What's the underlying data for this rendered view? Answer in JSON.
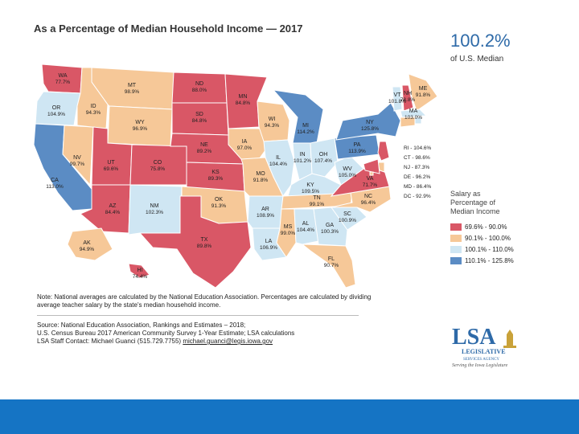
{
  "title": "As a Percentage of Median Household Income — 2017",
  "us_median": {
    "value": "100.2%",
    "label": "of U.S. Median"
  },
  "legend": {
    "title_lines": [
      "Salary as",
      "Percentage of",
      "Median Income"
    ],
    "items": [
      {
        "label": "69.6% - 90.0%",
        "color": "#d95766"
      },
      {
        "label": "90.1% - 100.0%",
        "color": "#f6c898"
      },
      {
        "label": "100.1% - 110.0%",
        "color": "#cfe6f3"
      },
      {
        "label": "110.1% - 125.8%",
        "color": "#5b8cc4"
      }
    ]
  },
  "states": {
    "WA": "77.7%",
    "OR": "104.9%",
    "CA": "113.0%",
    "NV": "99.7%",
    "ID": "94.3%",
    "MT": "98.9%",
    "WY": "96.9%",
    "UT": "69.6%",
    "AZ": "84.4%",
    "CO": "75.8%",
    "NM": "102.3%",
    "ND": "88.0%",
    "SD": "84.8%",
    "NE": "89.2%",
    "KS": "89.3%",
    "OK": "91.3%",
    "TX": "89.8%",
    "MN": "84.8%",
    "IA": "97.0%",
    "MO": "91.8%",
    "AR": "108.9%",
    "LA": "106.9%",
    "WI": "94.3%",
    "IL": "104.4%",
    "MI": "114.2%",
    "IN": "101.2%",
    "OH": "107.4%",
    "KY": "109.5%",
    "TN": "99.1%",
    "MS": "99.0%",
    "AL": "104.4%",
    "GA": "100.3%",
    "FL": "90.7%",
    "SC": "100.9%",
    "NC": "96.4%",
    "VA": "71.7%",
    "WV": "105.0%",
    "PA": "113.9%",
    "NY": "125.8%",
    "VT": "101.8%",
    "NH": "78.8%",
    "ME": "91.8%",
    "MA": "103.0%",
    "RI": "104.6%",
    "CT": "98.6%",
    "NJ": "87.3%",
    "DE": "96.2%",
    "MD": "86.4%",
    "DC": "92.9%",
    "AK": "94.9%",
    "HI": "74.4%"
  },
  "state_colors": {
    "WA": "#d95766",
    "OR": "#cfe6f3",
    "CA": "#5b8cc4",
    "NV": "#f6c898",
    "ID": "#f6c898",
    "MT": "#f6c898",
    "WY": "#f6c898",
    "UT": "#d95766",
    "AZ": "#d95766",
    "CO": "#d95766",
    "NM": "#cfe6f3",
    "ND": "#d95766",
    "SD": "#d95766",
    "NE": "#d95766",
    "KS": "#d95766",
    "OK": "#f6c898",
    "TX": "#d95766",
    "MN": "#d95766",
    "IA": "#f6c898",
    "MO": "#f6c898",
    "AR": "#cfe6f3",
    "LA": "#cfe6f3",
    "WI": "#f6c898",
    "IL": "#cfe6f3",
    "MI": "#5b8cc4",
    "IN": "#cfe6f3",
    "OH": "#cfe6f3",
    "KY": "#cfe6f3",
    "TN": "#f6c898",
    "MS": "#f6c898",
    "AL": "#cfe6f3",
    "GA": "#cfe6f3",
    "FL": "#f6c898",
    "SC": "#cfe6f3",
    "NC": "#f6c898",
    "VA": "#d95766",
    "WV": "#cfe6f3",
    "PA": "#5b8cc4",
    "NY": "#5b8cc4",
    "VT": "#cfe6f3",
    "NH": "#d95766",
    "ME": "#f6c898",
    "MA": "#cfe6f3",
    "RI": "#cfe6f3",
    "CT": "#f6c898",
    "NJ": "#d95766",
    "DE": "#f6c898",
    "MD": "#d95766",
    "DC": "#f6c898",
    "AK": "#f6c898",
    "HI": "#d95766"
  },
  "side_labels": {
    "RI": "RI - 104.6%",
    "CT": "CT - 98.6%",
    "NJ": "NJ - 87.3%",
    "DE": "DE - 96.2%",
    "MD": "MD - 86.4%",
    "DC": "DC - 92.9%"
  },
  "note": "Note: National averages are calculated by the National Education Association. Percentages are calculated by dividing average teacher salary by the state's median household income.",
  "source_lines": [
    "Source: National Education Association, Rankings and Estimates – 2018;",
    "U.S. Census Bureau 2017 American Community Survey 1-Year Estimate; LSA calculations",
    "LSA Staff Contact: Michael Guanci (515.729.7755)"
  ],
  "source_email": "michael.guanci@legis.iowa.gov",
  "logo": {
    "mark": "LSA",
    "line1": "LEGISLATIVE",
    "line2": "SERVICES AGENCY",
    "tagline": "Serving the Iowa Legislature"
  }
}
